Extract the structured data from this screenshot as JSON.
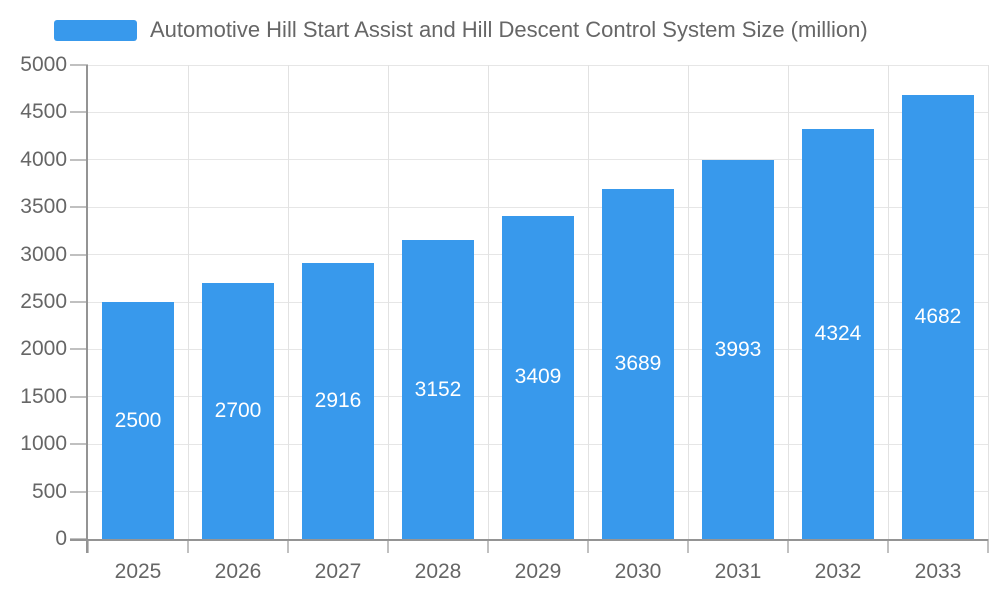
{
  "legend": {
    "label": "Automotive Hill Start Assist and Hill Descent Control System Size (million)"
  },
  "chart_data": {
    "type": "bar",
    "title": "Automotive Hill Start Assist and Hill Descent Control System Size (million)",
    "categories": [
      "2025",
      "2026",
      "2027",
      "2028",
      "2029",
      "2030",
      "2031",
      "2032",
      "2033"
    ],
    "values": [
      2500,
      2700,
      2916,
      3152,
      3409,
      3689,
      3993,
      4324,
      4682
    ],
    "bar_labels": [
      "2500",
      "2700",
      "2916",
      "3152",
      "3409",
      "3689",
      "3993",
      "4324",
      "4682"
    ],
    "xlabel": "",
    "ylabel": "",
    "ylim": [
      0,
      5000
    ],
    "ytick_step": 500,
    "yticks": [
      0,
      500,
      1000,
      1500,
      2000,
      2500,
      3000,
      3500,
      4000,
      4500,
      5000
    ],
    "grid": true,
    "legend_position": "top-left",
    "colors": {
      "bar": "#3899ec",
      "bar_label_text": "#ffffff",
      "axis_text": "#666666",
      "grid_line": "#e6e6e6",
      "axis_line": "#949494",
      "tick": "#c0c0c0"
    }
  }
}
